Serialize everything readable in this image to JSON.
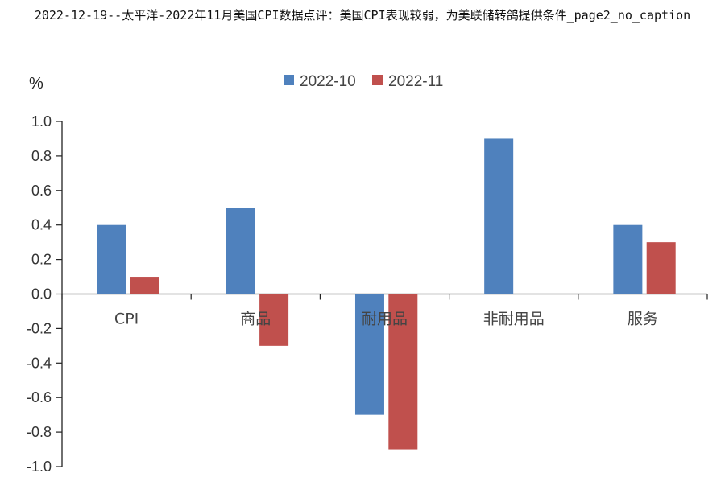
{
  "page": {
    "title": "2022-12-19--太平洋-2022年11月美国CPI数据点评：美国CPI表现较弱，为美联储转鸽提供条件_page2_no_caption"
  },
  "chart_data": {
    "type": "bar",
    "unit_label": "%",
    "categories": [
      "CPI",
      "商品",
      "耐用品",
      "非耐用品",
      "服务"
    ],
    "series": [
      {
        "name": "2022-10",
        "color": "#4F81BD",
        "values": [
          0.4,
          0.5,
          -0.7,
          0.9,
          0.4
        ]
      },
      {
        "name": "2022-11",
        "color": "#C0504D",
        "values": [
          0.1,
          -0.3,
          -0.9,
          0.0,
          0.3
        ]
      }
    ],
    "ylim": [
      -1.0,
      1.0
    ],
    "yticks": [
      "-1.0",
      "-0.8",
      "-0.6",
      "-0.4",
      "-0.2",
      "0.0",
      "0.2",
      "0.4",
      "0.6",
      "0.8",
      "1.0"
    ],
    "grid": false,
    "legend_position": "top-center"
  }
}
